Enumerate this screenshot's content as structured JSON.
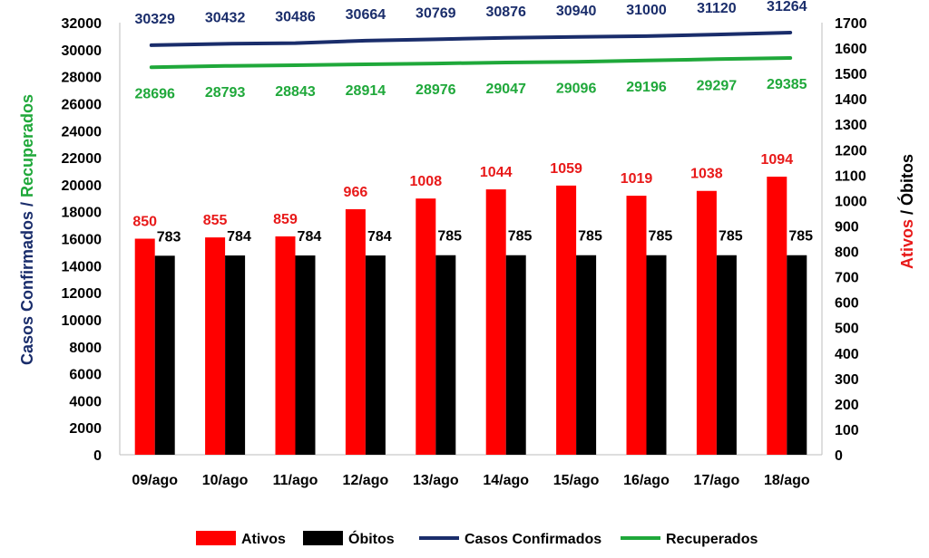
{
  "chart_data": {
    "type": "bar",
    "categories": [
      "09/ago",
      "10/ago",
      "11/ago",
      "12/ago",
      "13/ago",
      "14/ago",
      "15/ago",
      "16/ago",
      "17/ago",
      "18/ago"
    ],
    "series": [
      {
        "name": "Ativos",
        "type": "bar",
        "axis": "right",
        "color": "#ff0000",
        "values": [
          850,
          855,
          859,
          966,
          1008,
          1044,
          1059,
          1019,
          1038,
          1094
        ]
      },
      {
        "name": "Óbitos",
        "type": "bar",
        "axis": "right",
        "color": "#000000",
        "values": [
          783,
          784,
          784,
          784,
          785,
          785,
          785,
          785,
          785,
          785
        ]
      },
      {
        "name": "Casos Confirmados",
        "type": "line",
        "axis": "left",
        "color": "#1a2d6b",
        "values": [
          30329,
          30432,
          30486,
          30664,
          30769,
          30876,
          30940,
          31000,
          31120,
          31264
        ]
      },
      {
        "name": "Recuperados",
        "type": "line",
        "axis": "left",
        "color": "#1fa83a",
        "values": [
          28696,
          28793,
          28843,
          28914,
          28976,
          29047,
          29096,
          29196,
          29297,
          29385
        ]
      }
    ],
    "y_left": {
      "label_parts": [
        {
          "text": "Casos Confirmados",
          "color": "#1a2d6b"
        },
        {
          "text": " / ",
          "color": "#1a2d6b"
        },
        {
          "text": "Recuperados",
          "color": "#1fa83a"
        }
      ],
      "ylim": [
        0,
        32000
      ],
      "ticks": [
        0,
        2000,
        4000,
        6000,
        8000,
        10000,
        12000,
        14000,
        16000,
        18000,
        20000,
        22000,
        24000,
        26000,
        28000,
        30000,
        32000
      ]
    },
    "y_right": {
      "label_parts": [
        {
          "text": "Ativos",
          "color": "#e81919"
        },
        {
          "text": " / ",
          "color": "#000000"
        },
        {
          "text": "Óbitos",
          "color": "#000000"
        }
      ],
      "ylim": [
        0,
        1700
      ],
      "ticks": [
        0,
        100,
        200,
        300,
        400,
        500,
        600,
        700,
        800,
        900,
        1000,
        1100,
        1200,
        1300,
        1400,
        1500,
        1600,
        1700
      ]
    },
    "legend": {
      "position": "bottom",
      "items": [
        {
          "label": "Ativos",
          "shape": "rect",
          "color": "#ff0000"
        },
        {
          "label": "Óbitos",
          "shape": "rect",
          "color": "#000000"
        },
        {
          "label": "Casos Confirmados",
          "shape": "line",
          "color": "#1a2d6b"
        },
        {
          "label": "Recuperados",
          "shape": "line",
          "color": "#1fa83a"
        }
      ]
    },
    "grid": false
  }
}
